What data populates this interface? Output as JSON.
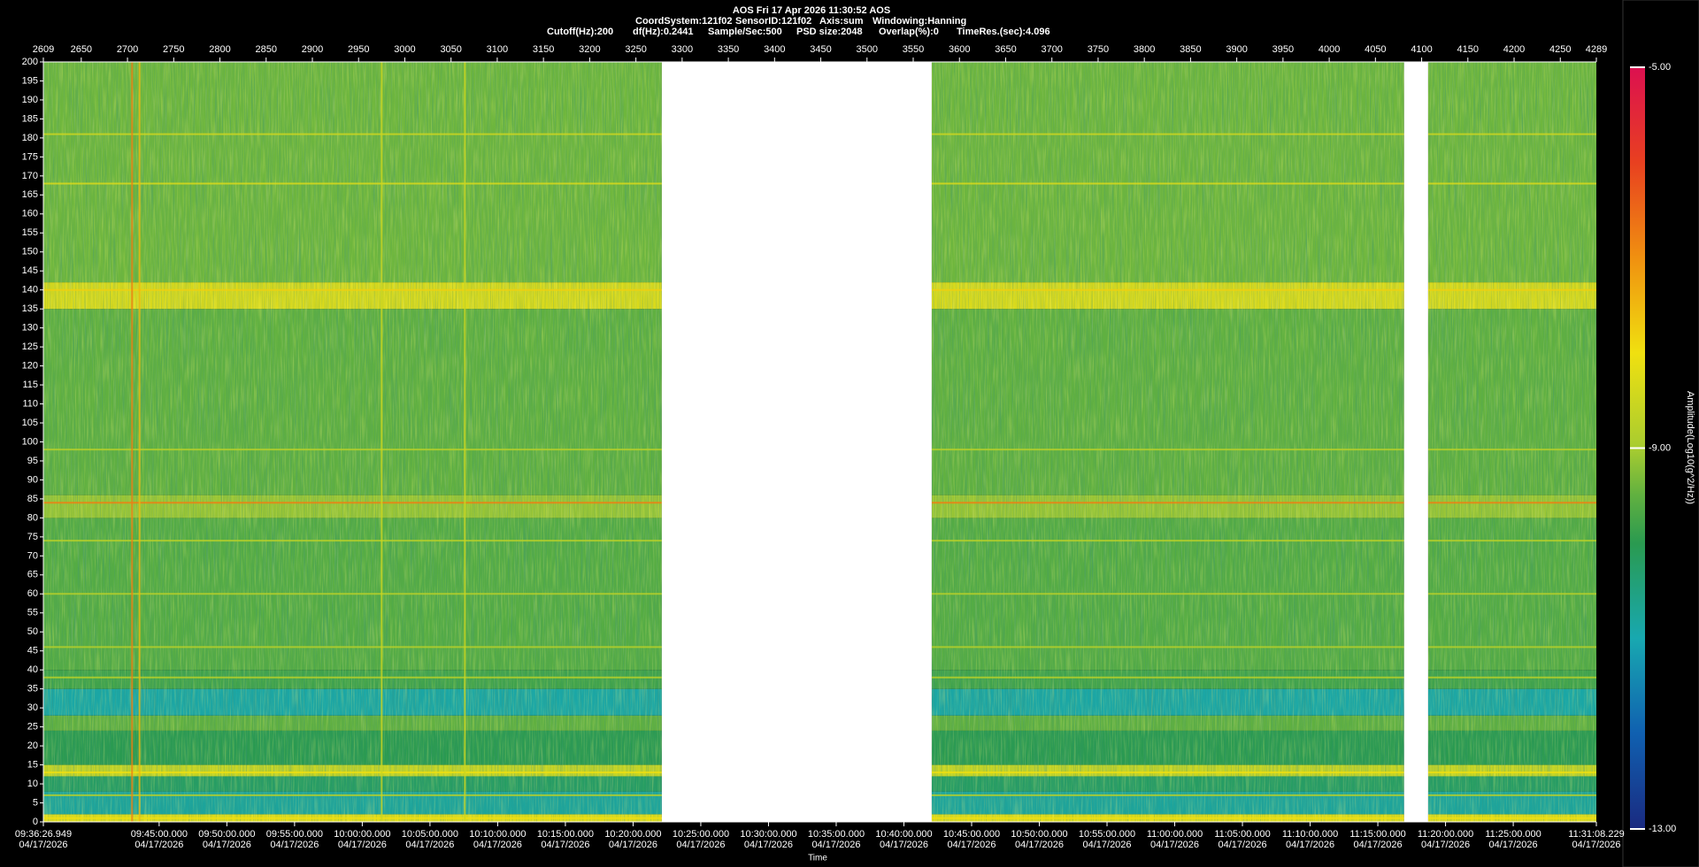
{
  "chart_data": {
    "type": "spectrogram",
    "title": "AOS  Fri 17 Apr 2026 11:30:52  AOS",
    "info_line1": [
      "CoordSystem:121f02",
      "SensorID:121f02",
      "Axis:sum",
      "Windowing:Hanning"
    ],
    "info_line2": [
      "Cutoff(Hz):200",
      "df(Hz):0.2441",
      "Sample/Sec:500",
      "PSD size:2048",
      "Overlap(%):0",
      "TimeRes.(sec):4.096"
    ],
    "x_label": "Time",
    "colorbar_label": "Amplitude(Log10(g^2/Hz))",
    "xlim": [
      2609,
      4289
    ],
    "xticks": [
      2609,
      2650,
      2700,
      2750,
      2800,
      2850,
      2900,
      2950,
      3000,
      3050,
      3100,
      3150,
      3200,
      3250,
      3300,
      3350,
      3400,
      3450,
      3500,
      3550,
      3600,
      3650,
      3700,
      3750,
      3800,
      3850,
      3900,
      3950,
      4000,
      4050,
      4100,
      4150,
      4200,
      4250,
      4289
    ],
    "tick_date": "04/17/2026",
    "time_ticks": [
      {
        "value": 2609,
        "label": "09:36:26.949"
      },
      {
        "value": 2734.26,
        "label": "09:45:00.000"
      },
      {
        "value": 2807.51,
        "label": "09:50:00.000"
      },
      {
        "value": 2880.75,
        "label": "09:55:00.000"
      },
      {
        "value": 2953.99,
        "label": "10:00:00.000"
      },
      {
        "value": 3027.23,
        "label": "10:05:00.000"
      },
      {
        "value": 3100.47,
        "label": "10:10:00.000"
      },
      {
        "value": 3173.72,
        "label": "10:15:00.000"
      },
      {
        "value": 3246.96,
        "label": "10:20:00.000"
      },
      {
        "value": 3320.2,
        "label": "10:25:00.000"
      },
      {
        "value": 3393.44,
        "label": "10:30:00.000"
      },
      {
        "value": 3466.68,
        "label": "10:35:00.000"
      },
      {
        "value": 3539.93,
        "label": "10:40:00.000"
      },
      {
        "value": 3613.17,
        "label": "10:45:00.000"
      },
      {
        "value": 3686.41,
        "label": "10:50:00.000"
      },
      {
        "value": 3759.65,
        "label": "10:55:00.000"
      },
      {
        "value": 3832.89,
        "label": "11:00:00.000"
      },
      {
        "value": 3906.14,
        "label": "11:05:00.000"
      },
      {
        "value": 3979.38,
        "label": "11:10:00.000"
      },
      {
        "value": 4052.62,
        "label": "11:15:00.000"
      },
      {
        "value": 4125.86,
        "label": "11:20:00.000"
      },
      {
        "value": 4199.1,
        "label": "11:25:00.000"
      },
      {
        "value": 4289,
        "label": "11:31:08.229"
      }
    ],
    "ylim": [
      0,
      200
    ],
    "yticks": [
      0,
      5,
      10,
      15,
      20,
      25,
      30,
      35,
      40,
      45,
      50,
      55,
      60,
      65,
      70,
      75,
      80,
      85,
      90,
      95,
      100,
      105,
      110,
      115,
      120,
      125,
      130,
      135,
      140,
      145,
      150,
      155,
      160,
      165,
      170,
      175,
      180,
      185,
      190,
      195,
      200
    ],
    "clim": [
      -13,
      -5
    ],
    "cticks": [
      {
        "value": -5,
        "label": "-5.00"
      },
      {
        "value": -9,
        "label": "-9.00"
      },
      {
        "value": -13,
        "label": "-13.00"
      }
    ],
    "colormap": [
      {
        "value": -13,
        "color": "#1a2a80"
      },
      {
        "value": -12,
        "color": "#1060b0"
      },
      {
        "value": -11,
        "color": "#18a8b0"
      },
      {
        "value": -10,
        "color": "#2a9a50"
      },
      {
        "value": -9.5,
        "color": "#60b040"
      },
      {
        "value": -9,
        "color": "#a8cc30"
      },
      {
        "value": -8,
        "color": "#f0e010"
      },
      {
        "value": -7,
        "color": "#f09010"
      },
      {
        "value": -6,
        "color": "#e84020"
      },
      {
        "value": -5,
        "color": "#dc1050"
      }
    ],
    "gaps": [
      {
        "from": 3278,
        "to": 3570
      },
      {
        "from": 4081,
        "to": 4107
      }
    ],
    "bands": [
      {
        "from": 0,
        "to": 2,
        "value": -8.2
      },
      {
        "from": 2,
        "to": 8,
        "value": -10.8
      },
      {
        "from": 8,
        "to": 12,
        "value": -10.2
      },
      {
        "from": 12,
        "to": 15,
        "value": -8.6
      },
      {
        "from": 15,
        "to": 24,
        "value": -10
      },
      {
        "from": 24,
        "to": 28,
        "value": -9.5
      },
      {
        "from": 28,
        "to": 35,
        "value": -10.9
      },
      {
        "from": 35,
        "to": 40,
        "value": -9.8
      },
      {
        "from": 40,
        "to": 80,
        "value": -9.6
      },
      {
        "from": 80,
        "to": 86,
        "value": -9.1
      },
      {
        "from": 86,
        "to": 135,
        "value": -9.5
      },
      {
        "from": 135,
        "to": 142,
        "value": -8.3
      },
      {
        "from": 142,
        "to": 200,
        "value": -9.4
      }
    ],
    "lines": [
      {
        "frequency": 181,
        "value": -8.5
      },
      {
        "frequency": 168,
        "value": -8.3
      },
      {
        "frequency": 140,
        "value": -7.8
      },
      {
        "frequency": 98,
        "value": -8.8
      },
      {
        "frequency": 84,
        "value": -6.8
      },
      {
        "frequency": 74,
        "value": -8.8
      },
      {
        "frequency": 60,
        "value": -8.8
      },
      {
        "frequency": 46,
        "value": -8.8
      },
      {
        "frequency": 38,
        "value": -8.8
      },
      {
        "frequency": 13,
        "value": -8
      },
      {
        "frequency": 7,
        "value": -8.8
      },
      {
        "frequency": 1,
        "value": -8
      }
    ],
    "vertical_lines": [
      {
        "sample": 2705,
        "value": -6.8
      },
      {
        "sample": 2713,
        "value": -7.5
      },
      {
        "sample": 2975,
        "value": -8.5
      },
      {
        "sample": 3065,
        "value": -8.5
      }
    ]
  }
}
